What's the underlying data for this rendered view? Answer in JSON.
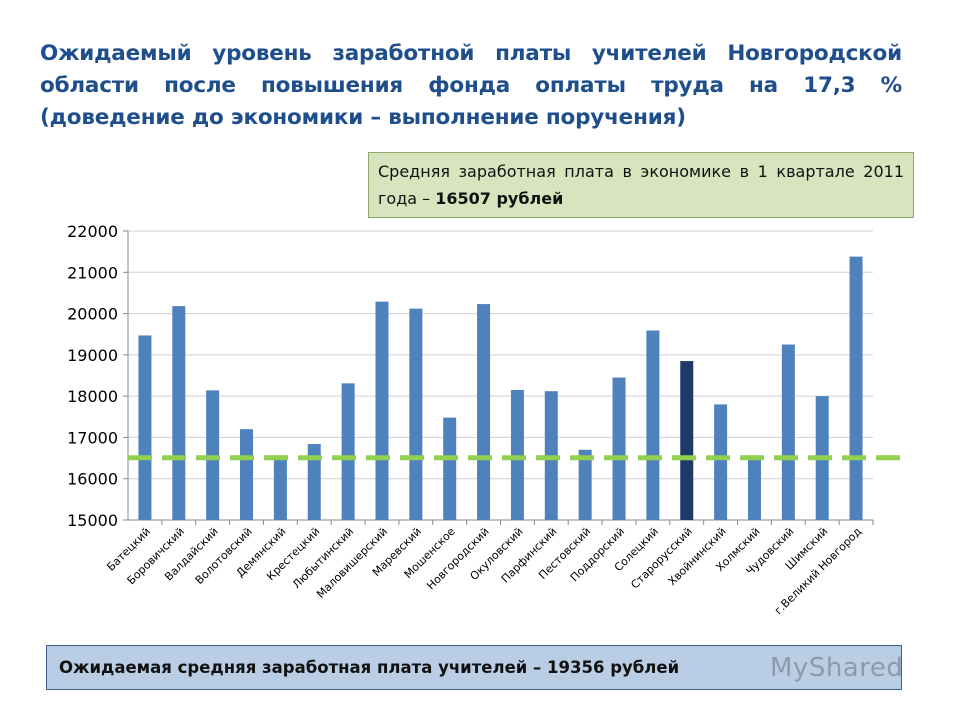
{
  "title": "Ожидаемый уровень заработной платы учителей Новгородской области после повышения фонда оплаты труда на 17,3 % (доведение до экономики – выполнение поручения)",
  "economy_box": {
    "text": "Средняя заработная плата в экономике в 1 квартале 2011 года – ",
    "bold": "16507 рублей"
  },
  "teacher_box": {
    "text": "Ожидаемая средняя заработная плата учителей – 19356 рублей"
  },
  "watermark": "MyShared",
  "chart_data": {
    "type": "bar",
    "categories": [
      "Батецкий",
      "Боровичский",
      "Валдайский",
      "Волотовский",
      "Демянский",
      "Крестецкий",
      "Любытинский",
      "Маловишерский",
      "Маревский",
      "Мошенское",
      "Новгородский",
      "Окуловский",
      "Парфинский",
      "Пестовский",
      "Поддорский",
      "Солецкий",
      "Старорусский",
      "Хвойнинский",
      "Холмский",
      "Чудовский",
      "Шимский",
      "г.Великий Новгород"
    ],
    "values": [
      19470,
      20180,
      18140,
      17200,
      16550,
      16840,
      18310,
      20290,
      20120,
      17480,
      20230,
      18150,
      18120,
      16700,
      18450,
      19590,
      18850,
      17800,
      16460,
      19250,
      18000,
      21380
    ],
    "highlight_index": 16,
    "yticks": [
      "15000",
      "16000",
      "17000",
      "18000",
      "19000",
      "20000",
      "21000",
      "22000"
    ],
    "ylim": [
      15000,
      22000
    ],
    "reference_line": 16507,
    "colors": {
      "bar": "#4f81bd",
      "bar_highlight": "#1f3a68",
      "reference": "#92d050",
      "grid": "#d0d0d0"
    }
  }
}
